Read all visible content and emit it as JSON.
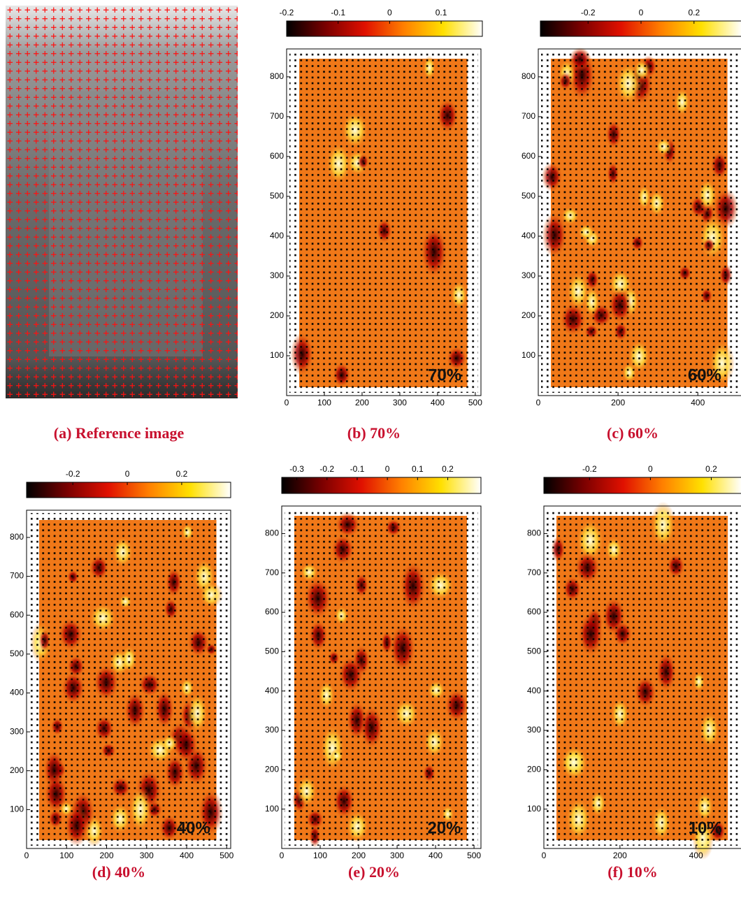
{
  "chart_data": [
    {
      "type": "image",
      "caption": "(a) Reference image"
    },
    {
      "type": "heatmap",
      "caption": "(b) 70%",
      "label": "70%",
      "xlim": [
        0,
        515
      ],
      "ylim": [
        0,
        870
      ],
      "xticks": [
        0,
        100,
        200,
        300,
        400,
        500
      ],
      "yticks": [
        100,
        200,
        300,
        400,
        500,
        600,
        700,
        800
      ],
      "colorbar": {
        "lim": [
          -0.2,
          0.18
        ],
        "ticks": [
          -0.2,
          -0.1,
          0,
          0.1
        ]
      },
      "colormap": [
        "#000000",
        "#7a0000",
        "#e01000",
        "#ff8000",
        "#ffe000",
        "#ffffff"
      ]
    },
    {
      "type": "heatmap",
      "caption": "(c) 60%",
      "label": "60%",
      "xlim": [
        0,
        510
      ],
      "ylim": [
        0,
        870
      ],
      "xticks": [
        0,
        200,
        400
      ],
      "yticks": [
        100,
        200,
        300,
        400,
        500,
        600,
        700,
        800
      ],
      "colorbar": {
        "lim": [
          -0.38,
          0.38
        ],
        "ticks": [
          -0.2,
          0,
          0.2
        ]
      },
      "colormap": [
        "#000000",
        "#7a0000",
        "#e01000",
        "#ff8000",
        "#ffe000",
        "#ffffff"
      ]
    },
    {
      "type": "heatmap",
      "caption": "(d) 40%",
      "label": "40%",
      "xlim": [
        0,
        510
      ],
      "ylim": [
        0,
        870
      ],
      "xticks": [
        0,
        100,
        200,
        300,
        400,
        500
      ],
      "yticks": [
        100,
        200,
        300,
        400,
        500,
        600,
        700,
        800
      ],
      "colorbar": {
        "lim": [
          -0.37,
          0.38
        ],
        "ticks": [
          -0.2,
          0,
          0.2
        ]
      },
      "colormap": [
        "#000000",
        "#7a0000",
        "#e01000",
        "#ff8000",
        "#ffe000",
        "#ffffff"
      ]
    },
    {
      "type": "heatmap",
      "caption": "(e) 20%",
      "label": "20%",
      "xlim": [
        0,
        518
      ],
      "ylim": [
        0,
        870
      ],
      "xticks": [
        0,
        100,
        200,
        300,
        400,
        500
      ],
      "yticks": [
        100,
        200,
        300,
        400,
        500,
        600,
        700,
        800
      ],
      "colorbar": {
        "lim": [
          -0.35,
          0.31
        ],
        "ticks": [
          -0.3,
          -0.2,
          -0.1,
          0,
          0.1,
          0.2
        ]
      },
      "colormap": [
        "#000000",
        "#7a0000",
        "#e01000",
        "#ff8000",
        "#ffe000",
        "#ffffff"
      ]
    },
    {
      "type": "heatmap",
      "caption": "(f) 10%",
      "label": "10%",
      "xlim": [
        0,
        520
      ],
      "ylim": [
        0,
        870
      ],
      "xticks": [
        0,
        200,
        400
      ],
      "yticks": [
        100,
        200,
        300,
        400,
        500,
        600,
        700,
        800
      ],
      "colorbar": {
        "lim": [
          -0.35,
          0.3
        ],
        "ticks": [
          -0.2,
          0,
          0.2
        ]
      },
      "colormap": [
        "#000000",
        "#7a0000",
        "#e01000",
        "#ff8000",
        "#ffe000",
        "#ffffff"
      ]
    }
  ]
}
